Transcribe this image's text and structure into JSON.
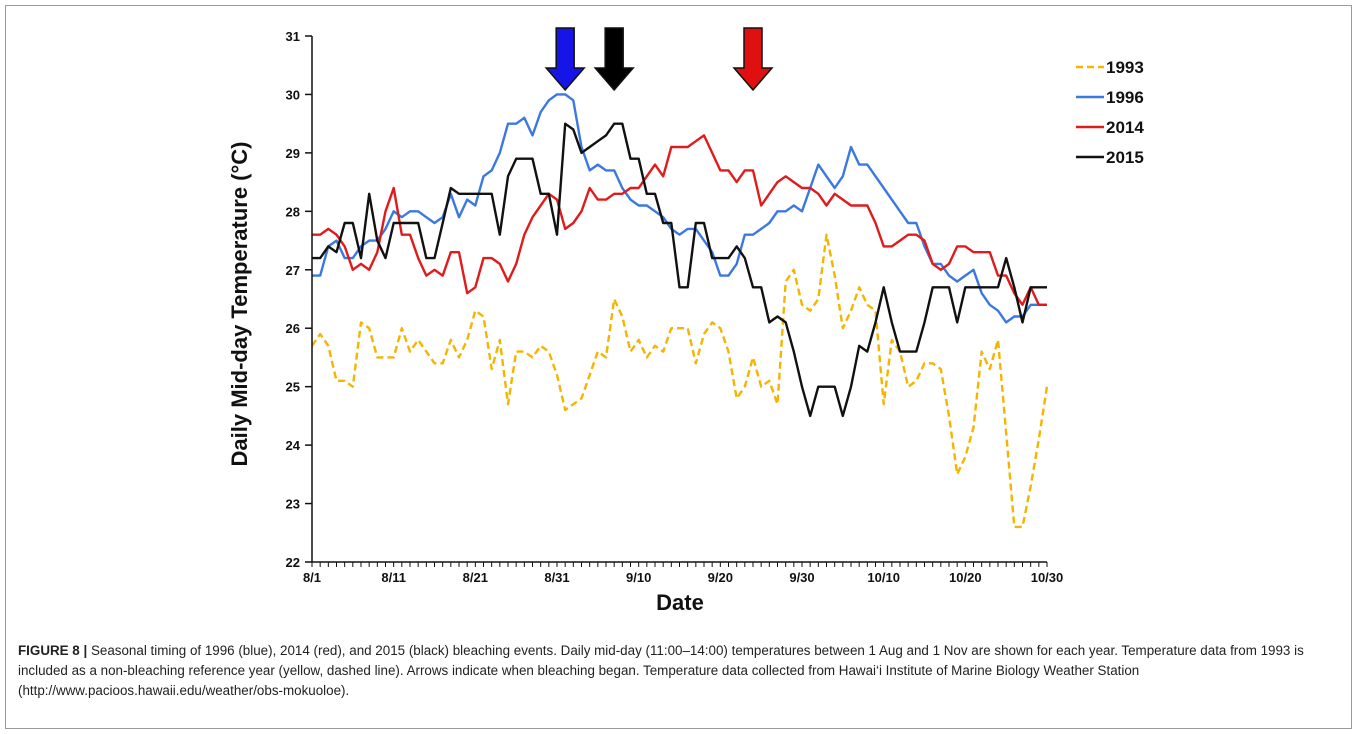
{
  "caption": {
    "label": "FIGURE 8 |",
    "text": " Seasonal timing of 1996 (blue), 2014 (red), and 2015 (black) bleaching events. Daily mid-day (11:00–14:00) temperatures between 1 Aug and 1 Nov are shown for each year. Temperature data from 1993 is included as a non-bleaching reference year (yellow, dashed line). Arrows indicate when bleaching began. Temperature data collected from Hawai‘i Institute of Marine Biology Weather Station (http://www.pacioos.hawaii.edu/weather/obs-mokuoloe)."
  },
  "chart_data": {
    "type": "line",
    "xlabel": "Date",
    "ylabel": "Daily Mid-day Temperature (°C)",
    "ylim": [
      22,
      31
    ],
    "yticks": [
      "22",
      "23",
      "24",
      "25",
      "26",
      "27",
      "28",
      "29",
      "30",
      "31"
    ],
    "x_range": [
      "8/1",
      "10/30"
    ],
    "xticks": [
      "8/1",
      "8/11",
      "8/21",
      "8/31",
      "9/10",
      "9/20",
      "9/30",
      "10/10",
      "10/20",
      "10/30"
    ],
    "grid": false,
    "legend_position": "top-right",
    "series": [
      {
        "name": "1993",
        "color": "#f5b400",
        "dashed": true,
        "x": [
          "8/1",
          "8/2",
          "8/3",
          "8/4",
          "8/5",
          "8/6",
          "8/7",
          "8/8",
          "8/9",
          "8/10",
          "8/11",
          "8/12",
          "8/13",
          "8/14",
          "8/15",
          "8/16",
          "8/17",
          "8/18",
          "8/19",
          "8/20",
          "8/21",
          "8/22",
          "8/23",
          "8/24",
          "8/25",
          "8/26",
          "8/27",
          "8/28",
          "8/29",
          "8/30",
          "8/31",
          "9/1",
          "9/2",
          "9/3",
          "9/4",
          "9/5",
          "9/6",
          "9/7",
          "9/8",
          "9/9",
          "9/10",
          "9/11",
          "9/12",
          "9/13",
          "9/14",
          "9/15",
          "9/16",
          "9/17",
          "9/18",
          "9/19",
          "9/20",
          "9/21",
          "9/22",
          "9/23",
          "9/24",
          "9/25",
          "9/26",
          "9/27",
          "9/28",
          "9/29",
          "9/30",
          "10/1",
          "10/2",
          "10/3",
          "10/4",
          "10/5",
          "10/6",
          "10/7",
          "10/8",
          "10/9",
          "10/10",
          "10/11",
          "10/12",
          "10/13",
          "10/14",
          "10/15",
          "10/16",
          "10/17",
          "10/18",
          "10/19",
          "10/20",
          "10/21",
          "10/22",
          "10/23",
          "10/24",
          "10/25",
          "10/26",
          "10/27",
          "10/28",
          "10/29",
          "10/30"
        ],
        "values": [
          25.7,
          25.9,
          25.7,
          25.1,
          25.1,
          25.0,
          26.1,
          26.0,
          25.5,
          25.5,
          25.5,
          26.0,
          25.6,
          25.8,
          25.6,
          25.4,
          25.4,
          25.8,
          25.5,
          25.8,
          26.3,
          26.2,
          25.3,
          25.8,
          24.7,
          25.6,
          25.6,
          25.5,
          25.7,
          25.6,
          25.2,
          24.6,
          24.7,
          24.8,
          25.2,
          25.6,
          25.5,
          26.5,
          26.2,
          25.6,
          25.8,
          25.5,
          25.7,
          25.6,
          26.0,
          26.0,
          26.0,
          25.4,
          25.9,
          26.1,
          26.0,
          25.6,
          24.8,
          25.0,
          25.5,
          25.0,
          25.1,
          24.7,
          26.8,
          27.0,
          26.4,
          26.3,
          26.5,
          27.6,
          26.9,
          26.0,
          26.3,
          26.7,
          26.4,
          26.3,
          24.7,
          25.8,
          25.6,
          25.0,
          25.1,
          25.4,
          25.4,
          25.3,
          24.5,
          23.5,
          23.8,
          24.3,
          25.6,
          25.3,
          25.8,
          24.2,
          22.6,
          22.6,
          23.3,
          24.1,
          25.0
        ]
      },
      {
        "name": "1996",
        "color": "#3b78e0",
        "dashed": false,
        "x": [
          "8/1",
          "8/2",
          "8/3",
          "8/4",
          "8/5",
          "8/6",
          "8/7",
          "8/8",
          "8/9",
          "8/10",
          "8/11",
          "8/12",
          "8/13",
          "8/14",
          "8/15",
          "8/16",
          "8/17",
          "8/18",
          "8/19",
          "8/20",
          "8/21",
          "8/22",
          "8/23",
          "8/24",
          "8/25",
          "8/26",
          "8/27",
          "8/28",
          "8/29",
          "8/30",
          "8/31",
          "9/1",
          "9/2",
          "9/3",
          "9/4",
          "9/5",
          "9/6",
          "9/7",
          "9/8",
          "9/9",
          "9/10",
          "9/11",
          "9/12",
          "9/13",
          "9/14",
          "9/15",
          "9/16",
          "9/17",
          "9/18",
          "9/19",
          "9/20",
          "9/21",
          "9/22",
          "9/23",
          "9/24",
          "9/25",
          "9/26",
          "9/27",
          "9/28",
          "9/29",
          "9/30",
          "10/1",
          "10/2",
          "10/3",
          "10/4",
          "10/5",
          "10/6",
          "10/7",
          "10/8",
          "10/9",
          "10/10",
          "10/11",
          "10/12",
          "10/13",
          "10/14",
          "10/15",
          "10/16",
          "10/17",
          "10/18",
          "10/19",
          "10/20",
          "10/21",
          "10/22",
          "10/23",
          "10/24",
          "10/25",
          "10/26",
          "10/27",
          "10/28",
          "10/29",
          "10/30"
        ],
        "values": [
          26.9,
          26.9,
          27.4,
          27.5,
          27.2,
          27.2,
          27.4,
          27.5,
          27.5,
          27.7,
          28.0,
          27.9,
          28.0,
          28.0,
          27.9,
          27.8,
          27.9,
          28.3,
          27.9,
          28.2,
          28.1,
          28.6,
          28.7,
          29.0,
          29.5,
          29.5,
          29.6,
          29.3,
          29.7,
          29.9,
          30.0,
          30.0,
          29.9,
          29.1,
          28.7,
          28.8,
          28.7,
          28.7,
          28.4,
          28.2,
          28.1,
          28.1,
          28.0,
          27.9,
          27.7,
          27.6,
          27.7,
          27.7,
          27.5,
          27.3,
          26.9,
          26.9,
          27.1,
          27.6,
          27.6,
          27.7,
          27.8,
          28.0,
          28.0,
          28.1,
          28.0,
          28.4,
          28.8,
          28.6,
          28.4,
          28.6,
          29.1,
          28.8,
          28.8,
          28.6,
          28.4,
          28.2,
          28.0,
          27.8,
          27.8,
          27.4,
          27.1,
          27.1,
          26.9,
          26.8,
          26.9,
          27.0,
          26.6,
          26.4,
          26.3,
          26.1,
          26.2,
          26.2,
          26.4,
          26.4,
          26.4
        ]
      },
      {
        "name": "2014",
        "color": "#e01b1b",
        "dashed": false,
        "x": [
          "8/1",
          "8/2",
          "8/3",
          "8/4",
          "8/5",
          "8/6",
          "8/7",
          "8/8",
          "8/9",
          "8/10",
          "8/11",
          "8/12",
          "8/13",
          "8/14",
          "8/15",
          "8/16",
          "8/17",
          "8/18",
          "8/19",
          "8/20",
          "8/21",
          "8/22",
          "8/23",
          "8/24",
          "8/25",
          "8/26",
          "8/27",
          "8/28",
          "8/29",
          "8/30",
          "8/31",
          "9/1",
          "9/2",
          "9/3",
          "9/4",
          "9/5",
          "9/6",
          "9/7",
          "9/8",
          "9/9",
          "9/10",
          "9/11",
          "9/12",
          "9/13",
          "9/14",
          "9/15",
          "9/16",
          "9/17",
          "9/18",
          "9/19",
          "9/20",
          "9/21",
          "9/22",
          "9/23",
          "9/24",
          "9/25",
          "9/26",
          "9/27",
          "9/28",
          "9/29",
          "9/30",
          "10/1",
          "10/2",
          "10/3",
          "10/4",
          "10/5",
          "10/6",
          "10/7",
          "10/8",
          "10/9",
          "10/10",
          "10/11",
          "10/12",
          "10/13",
          "10/14",
          "10/15",
          "10/16",
          "10/17",
          "10/18",
          "10/19",
          "10/20",
          "10/21",
          "10/22",
          "10/23",
          "10/24",
          "10/25",
          "10/26",
          "10/27",
          "10/28",
          "10/29",
          "10/30"
        ],
        "values": [
          27.6,
          27.6,
          27.7,
          27.6,
          27.4,
          27.0,
          27.1,
          27.0,
          27.3,
          28.0,
          28.4,
          27.6,
          27.6,
          27.2,
          26.9,
          27.0,
          26.9,
          27.3,
          27.3,
          26.6,
          26.7,
          27.2,
          27.2,
          27.1,
          26.8,
          27.1,
          27.6,
          27.9,
          28.1,
          28.3,
          28.2,
          27.7,
          27.8,
          28.0,
          28.4,
          28.2,
          28.2,
          28.3,
          28.3,
          28.4,
          28.4,
          28.6,
          28.8,
          28.6,
          29.1,
          29.1,
          29.1,
          29.2,
          29.3,
          29.0,
          28.7,
          28.7,
          28.5,
          28.7,
          28.7,
          28.1,
          28.3,
          28.5,
          28.6,
          28.5,
          28.4,
          28.4,
          28.3,
          28.1,
          28.3,
          28.2,
          28.1,
          28.1,
          28.1,
          27.8,
          27.4,
          27.4,
          27.5,
          27.6,
          27.6,
          27.5,
          27.1,
          27.0,
          27.1,
          27.4,
          27.4,
          27.3,
          27.3,
          27.3,
          26.9,
          26.9,
          26.6,
          26.4,
          26.7,
          26.4,
          26.4
        ]
      },
      {
        "name": "2015",
        "color": "#111111",
        "dashed": false,
        "x": [
          "8/1",
          "8/2",
          "8/3",
          "8/4",
          "8/5",
          "8/6",
          "8/7",
          "8/8",
          "8/9",
          "8/10",
          "8/11",
          "8/12",
          "8/13",
          "8/14",
          "8/15",
          "8/16",
          "8/17",
          "8/18",
          "8/19",
          "8/20",
          "8/21",
          "8/22",
          "8/23",
          "8/24",
          "8/25",
          "8/26",
          "8/27",
          "8/28",
          "8/29",
          "8/30",
          "8/31",
          "9/1",
          "9/2",
          "9/3",
          "9/4",
          "9/5",
          "9/6",
          "9/7",
          "9/8",
          "9/9",
          "9/10",
          "9/11",
          "9/12",
          "9/13",
          "9/14",
          "9/15",
          "9/16",
          "9/17",
          "9/18",
          "9/19",
          "9/20",
          "9/21",
          "9/22",
          "9/23",
          "9/24",
          "9/25",
          "9/26",
          "9/27",
          "9/28",
          "9/29",
          "9/30",
          "10/1",
          "10/2",
          "10/3",
          "10/4",
          "10/5",
          "10/6",
          "10/7",
          "10/8",
          "10/9",
          "10/10",
          "10/11",
          "10/12",
          "10/13",
          "10/14",
          "10/15",
          "10/16",
          "10/17",
          "10/18",
          "10/19",
          "10/20",
          "10/21",
          "10/22",
          "10/23",
          "10/24",
          "10/25",
          "10/26",
          "10/27",
          "10/28",
          "10/29",
          "10/30"
        ],
        "values": [
          27.2,
          27.2,
          27.4,
          27.3,
          27.8,
          27.8,
          27.2,
          28.3,
          27.5,
          27.2,
          27.8,
          27.8,
          27.8,
          27.8,
          27.2,
          27.2,
          27.8,
          28.4,
          28.3,
          28.3,
          28.3,
          28.3,
          28.3,
          27.6,
          28.6,
          28.9,
          28.9,
          28.9,
          28.3,
          28.3,
          27.6,
          29.5,
          29.4,
          29.0,
          29.1,
          29.2,
          29.3,
          29.5,
          29.5,
          28.9,
          28.9,
          28.3,
          28.3,
          27.8,
          27.8,
          26.7,
          26.7,
          27.8,
          27.8,
          27.2,
          27.2,
          27.2,
          27.4,
          27.2,
          26.7,
          26.7,
          26.1,
          26.2,
          26.1,
          25.6,
          25.0,
          24.5,
          25.0,
          25.0,
          25.0,
          24.5,
          25.0,
          25.7,
          25.6,
          26.1,
          26.7,
          26.1,
          25.6,
          25.6,
          25.6,
          26.1,
          26.7,
          26.7,
          26.7,
          26.1,
          26.7,
          26.7,
          26.7,
          26.7,
          26.7,
          27.2,
          26.7,
          26.1,
          26.7,
          26.7,
          26.7
        ]
      }
    ],
    "arrows": [
      {
        "color": "#1515e8",
        "x": "9/1"
      },
      {
        "color": "#000000",
        "x": "9/7"
      },
      {
        "color": "#e01010",
        "x": "9/24"
      }
    ]
  }
}
